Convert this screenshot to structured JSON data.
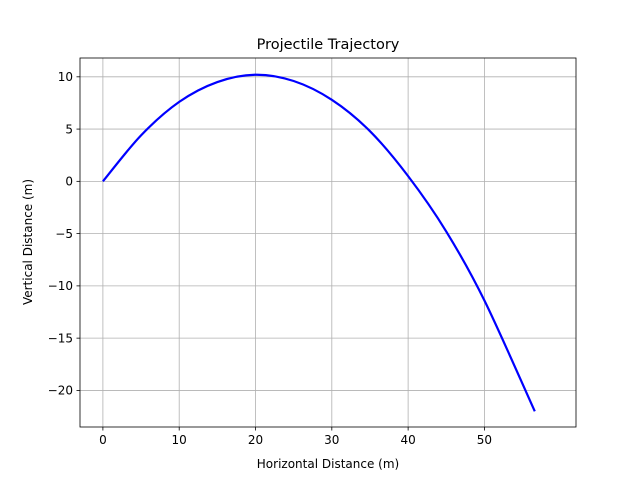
{
  "chart_data": {
    "type": "line",
    "title": "Projectile Trajectory",
    "xlabel": "Horizontal Distance (m)",
    "ylabel": "Vertical Distance (m)",
    "xlim": [
      -3,
      62
    ],
    "ylim": [
      -23.5,
      11.8
    ],
    "x_ticks": [
      0,
      10,
      20,
      30,
      40,
      50
    ],
    "y_ticks": [
      10,
      5,
      0,
      -5,
      -10,
      -15,
      -20
    ],
    "x_tick_labels": [
      "0",
      "10",
      "20",
      "30",
      "40",
      "50"
    ],
    "y_tick_labels": [
      "10",
      "5",
      "0",
      "−5",
      "−10",
      "−15",
      "−20"
    ],
    "grid": true,
    "series": [
      {
        "color": "#0000ff",
        "x": [
          0,
          5,
          10,
          15,
          20,
          25,
          30,
          35,
          40,
          45,
          50,
          56.6
        ],
        "y": [
          0,
          4.4,
          7.6,
          9.5,
          10.2,
          9.6,
          7.8,
          4.8,
          0.5,
          -4.8,
          -11.4,
          -22.0
        ]
      }
    ]
  }
}
